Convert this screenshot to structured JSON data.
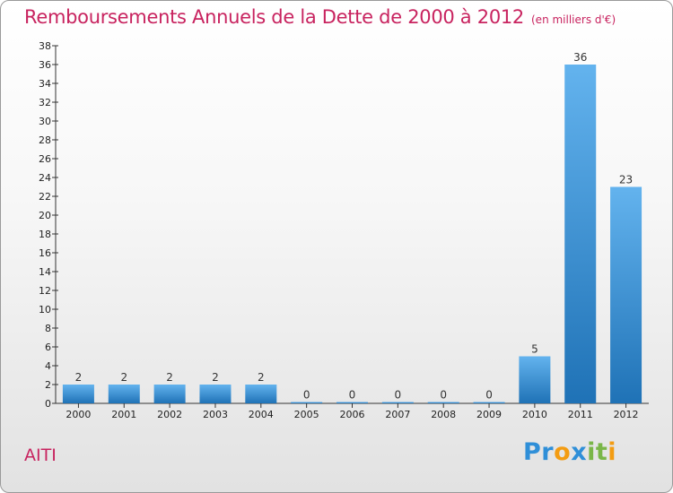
{
  "header": {
    "title": "Remboursements Annuels de la Dette de 2000 à 2012",
    "subtitle": "(en milliers d'€)"
  },
  "footer": {
    "commune": "AITI",
    "logo": {
      "text": "Proxiti",
      "letters": [
        "P",
        "r",
        "o",
        "x",
        "i",
        "t",
        "i"
      ]
    }
  },
  "colors": {
    "title": "#c8235f",
    "bar_light": "#63b3ee",
    "bar_dark": "#1f72b6",
    "logo": [
      "#2f8fd8",
      "#2f8fd8",
      "#f39c12",
      "#2f8fd8",
      "#7ab648",
      "#7ab648",
      "#f39c12"
    ]
  },
  "chart_data": {
    "type": "bar",
    "title": "Remboursements Annuels de la Dette de 2000 à 2012",
    "xlabel": "",
    "ylabel": "",
    "categories": [
      "2000",
      "2001",
      "2002",
      "2003",
      "2004",
      "2005",
      "2006",
      "2007",
      "2008",
      "2009",
      "2010",
      "2011",
      "2012"
    ],
    "values": [
      2,
      2,
      2,
      2,
      2,
      0,
      0,
      0,
      0,
      0,
      5,
      36,
      23
    ],
    "ylim": [
      0,
      38
    ],
    "yticks": [
      0,
      2,
      4,
      6,
      8,
      10,
      12,
      14,
      16,
      18,
      20,
      22,
      24,
      26,
      28,
      30,
      32,
      34,
      36,
      38
    ],
    "grid": false
  }
}
